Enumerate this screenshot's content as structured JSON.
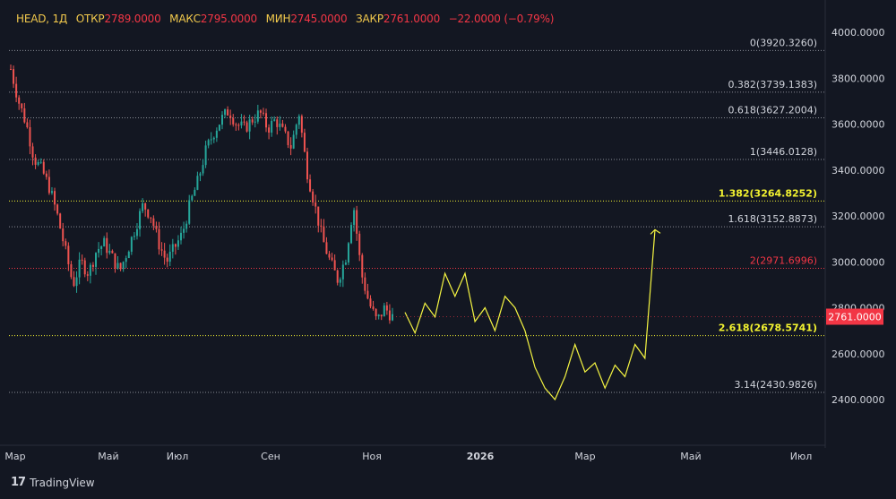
{
  "legend": {
    "symbol": "HEAD, 1Д",
    "open_label": "ОТКР",
    "open": "2789.0000",
    "high_label": "МАКС",
    "high": "2795.0000",
    "low_label": "МИН",
    "low": "2745.0000",
    "close_label": "ЗАКР",
    "close": "2761.0000",
    "change": "−22.0000 (−0.79%)"
  },
  "branding": {
    "name": "TradingView",
    "logo": "17"
  },
  "colors": {
    "up": "#26a69a",
    "down": "#ef5350",
    "projection": "#f5f542",
    "highlight_level": "#f2f230",
    "red_level": "#f23645",
    "price_badge": "#f23645"
  },
  "chart_data": {
    "type": "candlestick",
    "title": "",
    "ylim": [
      2350,
      4050
    ],
    "y_ticks": [
      "4000.0000",
      "3800.0000",
      "3600.0000",
      "3400.0000",
      "3200.0000",
      "3000.0000",
      "2800.0000",
      "2600.0000",
      "2400.0000"
    ],
    "x_ticks": [
      "Мар",
      "Май",
      "Июл",
      "Сен",
      "Ноя",
      "2026",
      "Мар",
      "Май",
      "Июл"
    ],
    "last_price": "2761.0000",
    "fib_levels": [
      {
        "ratio": "0",
        "price": "3920.3260",
        "value": 3920.326,
        "style": "plain"
      },
      {
        "ratio": "0.382",
        "price": "3739.1383",
        "value": 3739.1383,
        "style": "plain"
      },
      {
        "ratio": "0.618",
        "price": "3627.2004",
        "value": 3627.2004,
        "style": "plain"
      },
      {
        "ratio": "1",
        "price": "3446.0128",
        "value": 3446.0128,
        "style": "plain"
      },
      {
        "ratio": "1.382",
        "price": "3264.8252",
        "value": 3264.8252,
        "style": "highlight"
      },
      {
        "ratio": "1.618",
        "price": "3152.8873",
        "value": 3152.8873,
        "style": "plain"
      },
      {
        "ratio": "2",
        "price": "2971.6996",
        "value": 2971.6996,
        "style": "red"
      },
      {
        "ratio": "2.618",
        "price": "2678.5741",
        "value": 2678.5741,
        "style": "highlight"
      },
      {
        "ratio": "3.14",
        "price": "2430.9826",
        "value": 2430.9826,
        "style": "plain"
      }
    ],
    "price_path": [
      3840,
      3700,
      3600,
      3450,
      3400,
      3320,
      3200,
      3050,
      2900,
      3000,
      2950,
      3050,
      3080,
      3020,
      2960,
      3050,
      3150,
      3250,
      3200,
      3080,
      3000,
      3060,
      3120,
      3250,
      3350,
      3480,
      3560,
      3620,
      3660,
      3600,
      3580,
      3620,
      3650,
      3580,
      3620,
      3560,
      3500,
      3650,
      3400,
      3250,
      3100,
      3000,
      2920,
      3020,
      3250,
      2950,
      2820,
      2740,
      2800,
      2760
    ],
    "projection": [
      2780,
      2690,
      2820,
      2760,
      2950,
      2850,
      2950,
      2740,
      2800,
      2700,
      2850,
      2800,
      2700,
      2540,
      2450,
      2400,
      2500,
      2640,
      2520,
      2560,
      2450,
      2550,
      2500,
      2640,
      2580,
      3140
    ],
    "projection_span": [
      "2025-11-05",
      "2026-04-10"
    ]
  }
}
